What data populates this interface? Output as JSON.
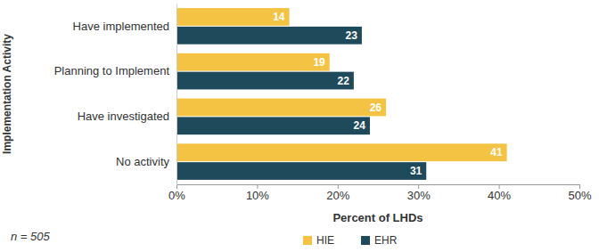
{
  "chart_data": {
    "type": "bar",
    "orientation": "horizontal",
    "categories": [
      "Have implemented",
      "Planning to Implement",
      "Have investigated",
      "No activity"
    ],
    "series": [
      {
        "name": "HIE",
        "color": "#f5c343",
        "values": [
          14,
          19,
          26,
          41
        ]
      },
      {
        "name": "EHR",
        "color": "#1e4a5b",
        "values": [
          23,
          22,
          24,
          31
        ]
      }
    ],
    "x_label": "Percent of LHDs",
    "y_label": "Implementation Activity",
    "annotation": "n = 505",
    "xlim": [
      0,
      50
    ],
    "xticks": [
      {
        "value": 0,
        "label": "0%"
      },
      {
        "value": 10,
        "label": "10%"
      },
      {
        "value": 20,
        "label": "20%"
      },
      {
        "value": 30,
        "label": "30%"
      },
      {
        "value": 40,
        "label": "40%"
      },
      {
        "value": 50,
        "label": "50%"
      }
    ],
    "grid": false,
    "legend": "bottom",
    "data_labels": true
  }
}
